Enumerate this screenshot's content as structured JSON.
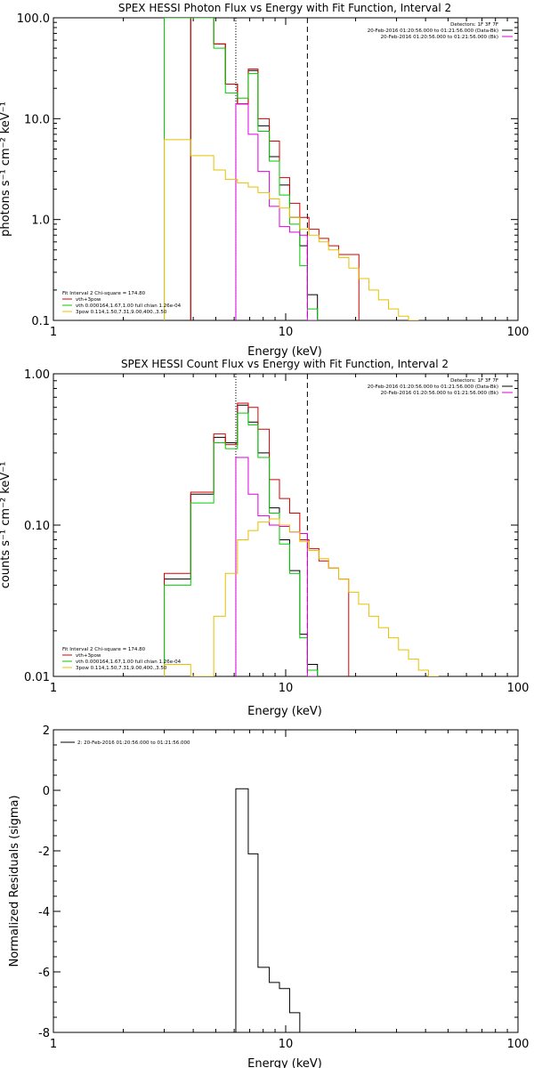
{
  "chart_data": [
    {
      "type": "line",
      "title": "SPEX HESSI Photon Flux vs Energy with Fit Function, Interval 2",
      "xlabel": "Energy (keV)",
      "ylabel": "photons s⁻¹ cm⁻² keV⁻¹",
      "xscale": "log",
      "yscale": "log",
      "xlim": [
        1,
        100
      ],
      "ylim": [
        0.1,
        100
      ],
      "x_ticks": [
        "1",
        "10",
        "100"
      ],
      "y_ticks": [
        "0.1",
        "1.0",
        "10.0",
        "100.0"
      ],
      "legend_top": [
        "Detectors: 1F 3F 7F",
        "20-Feb-2016 01:20:56.000 to 01:21:56.000 (Data-Bk)",
        "20-Feb-2016 01:20:56.000 to 01:21:56.000 (Bk)"
      ],
      "legend_bottom": [
        "Fit Interval  2    Chi-square = 174.80",
        "vth+3pow",
        "vth 0.000164,1.67,1.00    full chian 1.26e-04",
        "3pow 0.114,1.50,7.31,9.00,400.,3.50"
      ],
      "vlines": [
        {
          "x": 6.1,
          "style": "dotted"
        },
        {
          "x": 12.4,
          "style": "dashed"
        }
      ],
      "series": [
        {
          "color": "#000000",
          "step": true,
          "x": [
            3.9,
            4.9,
            5.5,
            6.2,
            6.9,
            7.6,
            8.5,
            9.4,
            10.4,
            11.5,
            12.4
          ],
          "values": [
            100,
            55,
            22,
            14,
            30,
            8.5,
            4.2,
            2.2,
            1.05,
            0.55,
            0.18
          ]
        },
        {
          "color": "#d40000",
          "step": true,
          "x": [
            3.9,
            4.9,
            5.5,
            6.2,
            6.9,
            7.6,
            8.5,
            9.4,
            10.4,
            11.5,
            12.6,
            13.9,
            15.3,
            16.9,
            18.7
          ],
          "values": [
            100,
            55,
            22,
            14,
            31,
            10,
            6,
            2.6,
            1.45,
            1.05,
            0.8,
            0.65,
            0.55,
            0.45,
            0.45
          ]
        },
        {
          "color": "#00cc00",
          "step": true,
          "x": [
            3.0,
            3.9,
            4.9,
            5.5,
            6.2,
            6.9,
            7.6,
            8.5,
            9.4,
            10.4,
            11.5,
            12.4
          ],
          "values": [
            100,
            100,
            50,
            18,
            16,
            28,
            7.5,
            3.8,
            1.75,
            0.9,
            0.35,
            0.13
          ]
        },
        {
          "color": "#dd00dd",
          "step": true,
          "x": [
            6.1,
            6.9,
            7.6,
            8.5,
            9.4,
            10.4,
            11.5,
            12.4
          ],
          "values": [
            14,
            7,
            3,
            1.35,
            0.85,
            0.75,
            0.7,
            0.1
          ]
        },
        {
          "color": "#e8c000",
          "step": true,
          "x": [
            3.0,
            3.9,
            4.9,
            5.5,
            6.2,
            6.9,
            7.6,
            8.5,
            9.4,
            10.4,
            11.5,
            12.6,
            13.9,
            15.3,
            16.9,
            18.7,
            20.6,
            22.8,
            25.1,
            27.7,
            30.6,
            33.8
          ],
          "values": [
            6.2,
            4.3,
            3.1,
            2.5,
            2.3,
            2.1,
            1.85,
            1.6,
            1.3,
            1.05,
            0.8,
            0.7,
            0.6,
            0.5,
            0.42,
            0.33,
            0.26,
            0.2,
            0.16,
            0.13,
            0.11,
            0.09
          ]
        }
      ]
    },
    {
      "type": "line",
      "title": "SPEX HESSI Count Flux vs Energy with Fit Function, Interval 2",
      "xlabel": "Energy (keV)",
      "ylabel": "counts s⁻¹ cm⁻² keV⁻¹",
      "xscale": "log",
      "yscale": "log",
      "xlim": [
        1,
        100
      ],
      "ylim": [
        0.01,
        1
      ],
      "x_ticks": [
        "1",
        "10",
        "100"
      ],
      "y_ticks": [
        "0.01",
        "0.10",
        "1.00"
      ],
      "legend_top": [
        "Detectors: 1F 3F 7F",
        "20-Feb-2016 01:20:56.000 to 01:21:56.000 (Data-Bk)",
        "20-Feb-2016 01:20:56.000 to 01:21:56.000 (Bk)"
      ],
      "legend_bottom": [
        "Fit Interval  2    Chi-square = 174.80",
        "vth+3pow",
        "vth 0.000164,1.67,1.00    full chian 1.26e-04",
        "3pow 0.114,1.50,7.31,9.00,400.,3.50"
      ],
      "vlines": [
        {
          "x": 6.1,
          "style": "dotted"
        },
        {
          "x": 12.4,
          "style": "dashed"
        }
      ],
      "series": [
        {
          "color": "#000000",
          "step": true,
          "x": [
            3.0,
            3.9,
            4.9,
            5.5,
            6.2,
            6.9,
            7.6,
            8.5,
            9.4,
            10.4,
            11.5,
            12.4
          ],
          "values": [
            0.044,
            0.16,
            0.38,
            0.35,
            0.62,
            0.48,
            0.3,
            0.13,
            0.08,
            0.05,
            0.019,
            0.012
          ]
        },
        {
          "color": "#d40000",
          "step": true,
          "x": [
            3.0,
            3.9,
            4.9,
            5.5,
            6.2,
            6.9,
            7.6,
            8.5,
            9.4,
            10.4,
            11.5,
            12.6,
            13.9,
            15.3,
            16.9
          ],
          "values": [
            0.048,
            0.165,
            0.4,
            0.34,
            0.64,
            0.6,
            0.43,
            0.2,
            0.15,
            0.12,
            0.08,
            0.07,
            0.058,
            0.052,
            0.044
          ]
        },
        {
          "color": "#00cc00",
          "step": true,
          "x": [
            3.0,
            3.9,
            4.9,
            5.5,
            6.2,
            6.9,
            7.6,
            8.5,
            9.4,
            10.4,
            11.5,
            12.4
          ],
          "values": [
            0.04,
            0.14,
            0.35,
            0.32,
            0.55,
            0.46,
            0.28,
            0.12,
            0.075,
            0.048,
            0.018,
            0.011
          ]
        },
        {
          "color": "#dd00dd",
          "step": true,
          "x": [
            6.1,
            6.9,
            7.6,
            8.5,
            9.4,
            10.4,
            11.5,
            12.4
          ],
          "values": [
            0.28,
            0.16,
            0.115,
            0.1,
            0.098,
            0.09,
            0.088,
            0.01
          ]
        },
        {
          "color": "#e8c000",
          "step": true,
          "x": [
            3.0,
            3.9,
            4.9,
            5.5,
            6.2,
            6.9,
            7.6,
            8.5,
            9.4,
            10.4,
            11.5,
            12.6,
            13.9,
            15.3,
            16.9,
            18.7,
            20.6,
            22.8,
            25.1,
            27.7,
            30.6,
            33.8,
            37.3,
            41.2
          ],
          "values": [
            0.012,
            0.01,
            0.025,
            0.048,
            0.08,
            0.092,
            0.105,
            0.11,
            0.1,
            0.09,
            0.078,
            0.068,
            0.06,
            0.052,
            0.044,
            0.036,
            0.03,
            0.025,
            0.021,
            0.018,
            0.015,
            0.013,
            0.011,
            0.0095
          ]
        }
      ]
    },
    {
      "type": "line",
      "title": "",
      "xlabel": "Energy (keV)",
      "ylabel": "Normalized Residuals (sigma)",
      "xscale": "log",
      "yscale": "linear",
      "xlim": [
        1,
        100
      ],
      "ylim": [
        -8,
        2
      ],
      "x_ticks": [
        "1",
        "10",
        "100"
      ],
      "y_ticks": [
        "-8",
        "-6",
        "-4",
        "-2",
        "0",
        "2"
      ],
      "legend": "2: 20-Feb-2016 01:20:56.000 to 01:21:56.000",
      "series": [
        {
          "color": "#000000",
          "step": true,
          "x": [
            6.1,
            6.9,
            7.6,
            8.5,
            9.4,
            10.4,
            11.5,
            12.4
          ],
          "values": [
            0.05,
            -2.1,
            -5.85,
            -6.35,
            -6.55,
            -7.35,
            -8.0,
            -8.0
          ]
        }
      ]
    }
  ]
}
